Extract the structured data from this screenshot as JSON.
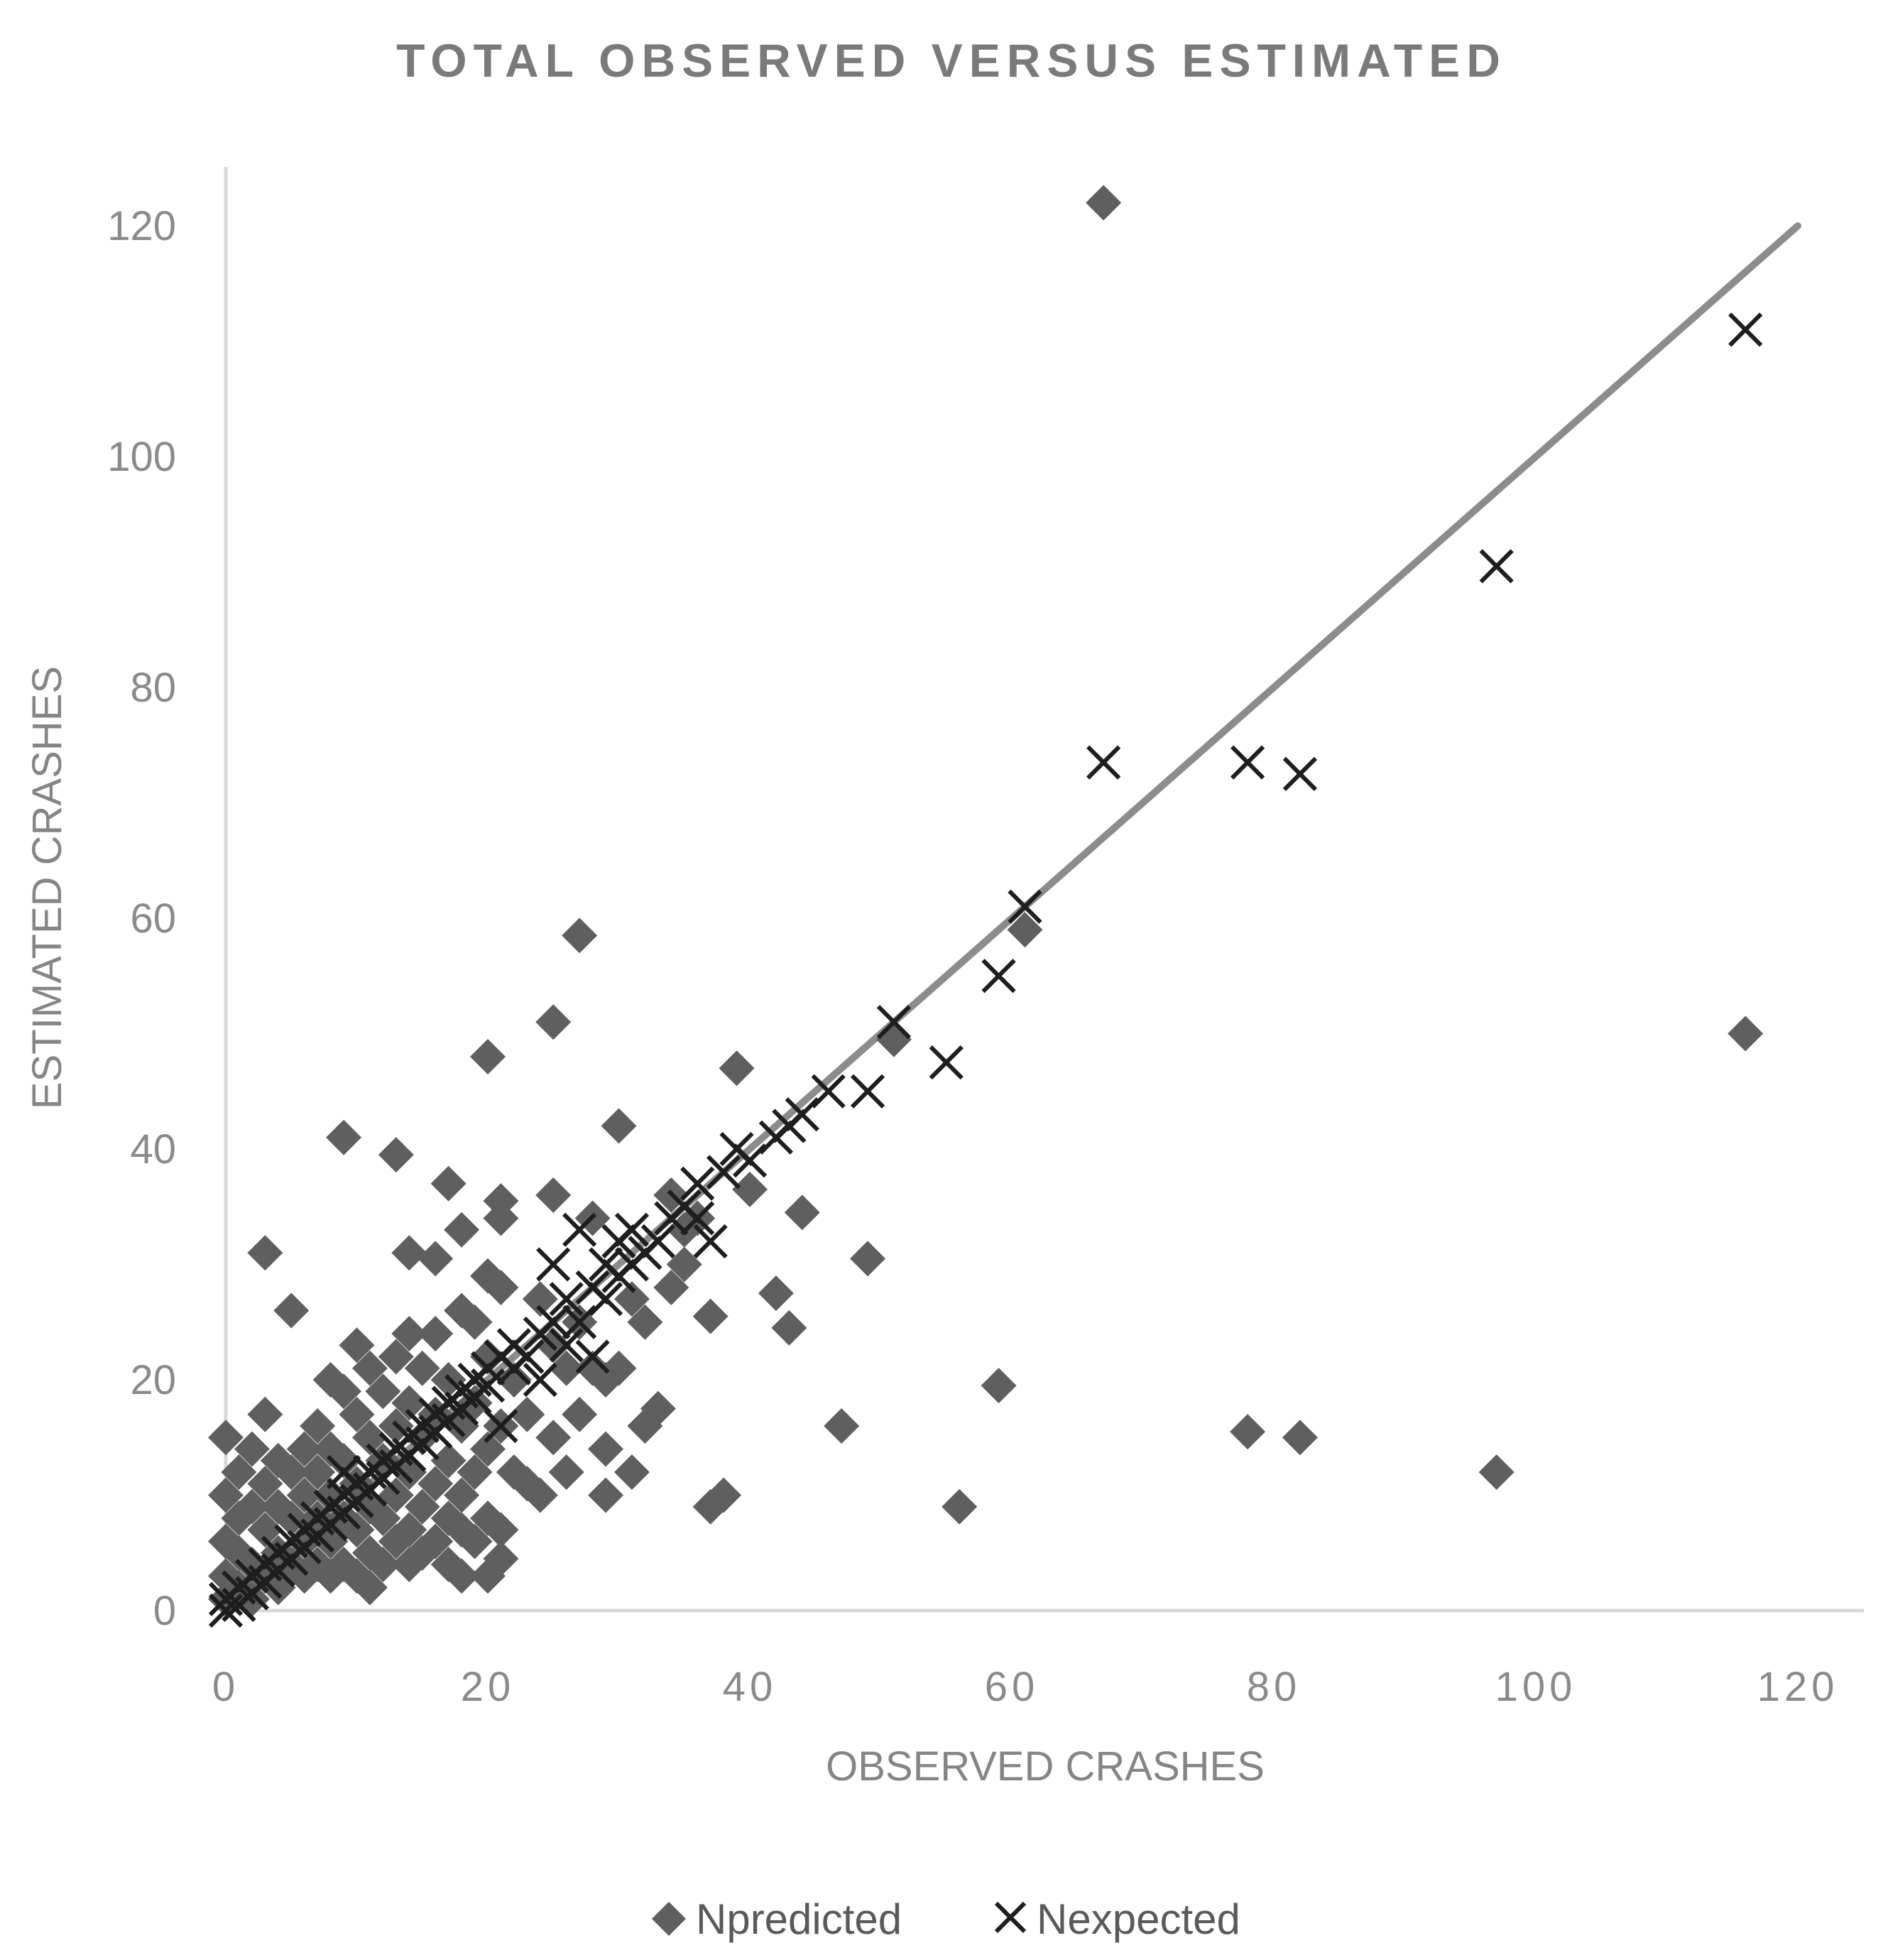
{
  "chart_data": {
    "type": "scatter",
    "title": "TOTAL OBSERVED VERSUS ESTIMATED",
    "xlabel": "OBSERVED CRASHES",
    "ylabel": "ESTIMATED CRASHES",
    "xlim": [
      0,
      120
    ],
    "ylim": [
      0,
      120
    ],
    "xticks": [
      "0",
      "20",
      "40",
      "60",
      "80",
      "100",
      "120"
    ],
    "yticks": [
      "0",
      "20",
      "40",
      "60",
      "80",
      "100",
      "120"
    ],
    "grid": false,
    "legend_position": "bottom",
    "reference_line": {
      "x": [
        0,
        120
      ],
      "y": [
        0,
        120
      ],
      "color": "#8c8c8c"
    },
    "series": [
      {
        "name": "Npredicted",
        "marker": "diamond",
        "color": "#5f5f5f",
        "points": [
          [
            0,
            15
          ],
          [
            0,
            10
          ],
          [
            0,
            6
          ],
          [
            0,
            3
          ],
          [
            0,
            1
          ],
          [
            1,
            12
          ],
          [
            1,
            8
          ],
          [
            1,
            5
          ],
          [
            1,
            2
          ],
          [
            2,
            14
          ],
          [
            2,
            9
          ],
          [
            2,
            4
          ],
          [
            2,
            1
          ],
          [
            3,
            31
          ],
          [
            3,
            17
          ],
          [
            3,
            11
          ],
          [
            3,
            7
          ],
          [
            3,
            3
          ],
          [
            4,
            13
          ],
          [
            4,
            9
          ],
          [
            4,
            5
          ],
          [
            4,
            2
          ],
          [
            5,
            26
          ],
          [
            5,
            12
          ],
          [
            5,
            8
          ],
          [
            5,
            4
          ],
          [
            6,
            14
          ],
          [
            6,
            10
          ],
          [
            6,
            6
          ],
          [
            6,
            3
          ],
          [
            7,
            16
          ],
          [
            7,
            12
          ],
          [
            7,
            8
          ],
          [
            7,
            4
          ],
          [
            8,
            20
          ],
          [
            8,
            14
          ],
          [
            8,
            10
          ],
          [
            8,
            6
          ],
          [
            8,
            3
          ],
          [
            9,
            41
          ],
          [
            9,
            19
          ],
          [
            9,
            13
          ],
          [
            9,
            8
          ],
          [
            9,
            4
          ],
          [
            10,
            23
          ],
          [
            10,
            17
          ],
          [
            10,
            11
          ],
          [
            10,
            7
          ],
          [
            10,
            3
          ],
          [
            11,
            21
          ],
          [
            11,
            15
          ],
          [
            11,
            9
          ],
          [
            11,
            5
          ],
          [
            11,
            2
          ],
          [
            12,
            19
          ],
          [
            12,
            13
          ],
          [
            12,
            8
          ],
          [
            12,
            4
          ],
          [
            13,
            39.5
          ],
          [
            13,
            22
          ],
          [
            13,
            16
          ],
          [
            13,
            10
          ],
          [
            13,
            6
          ],
          [
            14,
            31
          ],
          [
            14,
            24
          ],
          [
            14,
            18
          ],
          [
            14,
            12
          ],
          [
            14,
            7
          ],
          [
            14,
            4
          ],
          [
            15,
            21
          ],
          [
            15,
            15
          ],
          [
            15,
            9
          ],
          [
            15,
            5
          ],
          [
            16,
            30.5
          ],
          [
            16,
            24
          ],
          [
            16,
            17
          ],
          [
            16,
            11
          ],
          [
            16,
            6
          ],
          [
            17,
            37
          ],
          [
            17,
            20
          ],
          [
            17,
            13
          ],
          [
            17,
            8
          ],
          [
            17,
            4
          ],
          [
            18,
            33
          ],
          [
            18,
            26
          ],
          [
            18,
            16
          ],
          [
            18,
            10
          ],
          [
            18,
            7
          ],
          [
            18,
            3
          ],
          [
            19,
            25
          ],
          [
            19,
            18
          ],
          [
            19,
            12
          ],
          [
            19,
            6
          ],
          [
            20,
            48
          ],
          [
            20,
            29
          ],
          [
            20,
            22
          ],
          [
            20,
            14
          ],
          [
            20,
            8
          ],
          [
            20,
            3
          ],
          [
            21,
            35.5
          ],
          [
            21,
            34
          ],
          [
            21,
            28
          ],
          [
            21,
            16
          ],
          [
            21,
            7
          ],
          [
            21,
            4.5
          ],
          [
            22,
            20
          ],
          [
            22,
            12
          ],
          [
            23,
            17
          ],
          [
            23,
            11
          ],
          [
            24,
            27
          ],
          [
            24,
            10
          ],
          [
            25,
            51
          ],
          [
            25,
            36
          ],
          [
            25,
            23
          ],
          [
            25,
            15
          ],
          [
            26,
            21
          ],
          [
            26,
            12
          ],
          [
            27,
            58.5
          ],
          [
            27,
            25
          ],
          [
            27,
            17
          ],
          [
            28,
            34
          ],
          [
            28,
            21
          ],
          [
            29,
            20
          ],
          [
            29,
            14
          ],
          [
            29,
            10
          ],
          [
            30,
            42
          ],
          [
            30,
            21
          ],
          [
            31,
            27
          ],
          [
            31,
            12
          ],
          [
            32,
            25
          ],
          [
            32,
            16
          ],
          [
            33,
            17.5
          ],
          [
            34,
            36
          ],
          [
            34,
            28
          ],
          [
            35,
            33
          ],
          [
            35,
            30
          ],
          [
            36,
            34
          ],
          [
            37,
            25.5
          ],
          [
            37,
            9
          ],
          [
            38,
            10
          ],
          [
            39,
            47
          ],
          [
            40,
            36.5
          ],
          [
            42,
            27.5
          ],
          [
            43,
            24.5
          ],
          [
            44,
            34.5
          ],
          [
            47,
            16
          ],
          [
            49,
            30.5
          ],
          [
            51,
            49.5
          ],
          [
            56,
            9
          ],
          [
            59,
            19.5
          ],
          [
            61,
            59
          ],
          [
            67,
            122
          ],
          [
            78,
            15.5
          ],
          [
            82,
            15
          ],
          [
            97,
            12
          ],
          [
            116,
            50
          ]
        ]
      },
      {
        "name": "Nexpected",
        "marker": "x",
        "color": "#1e1e1e",
        "points": [
          [
            0,
            0
          ],
          [
            0,
            1
          ],
          [
            1,
            0.5
          ],
          [
            1,
            2
          ],
          [
            2,
            1.5
          ],
          [
            2,
            3
          ],
          [
            3,
            2.5
          ],
          [
            3,
            4
          ],
          [
            4,
            3.5
          ],
          [
            4,
            5
          ],
          [
            5,
            4.5
          ],
          [
            5,
            6
          ],
          [
            6,
            5.5
          ],
          [
            6,
            7
          ],
          [
            7,
            6.5
          ],
          [
            7,
            8
          ],
          [
            8,
            7.5
          ],
          [
            8,
            9
          ],
          [
            9,
            8.5
          ],
          [
            9,
            10
          ],
          [
            9,
            12
          ],
          [
            10,
            9.5
          ],
          [
            10,
            11
          ],
          [
            11,
            10.5
          ],
          [
            11,
            12
          ],
          [
            12,
            11.5
          ],
          [
            12,
            13
          ],
          [
            13,
            12.5
          ],
          [
            13,
            14
          ],
          [
            14,
            13.5
          ],
          [
            14,
            15
          ],
          [
            15,
            14.5
          ],
          [
            15,
            16
          ],
          [
            16,
            15.5
          ],
          [
            16,
            17
          ],
          [
            17,
            16.5
          ],
          [
            17,
            18
          ],
          [
            18,
            17.5
          ],
          [
            18,
            19
          ],
          [
            19,
            18.5
          ],
          [
            19,
            20
          ],
          [
            20,
            19.5
          ],
          [
            20,
            21
          ],
          [
            21,
            16
          ],
          [
            21,
            22
          ],
          [
            22,
            21
          ],
          [
            22,
            23
          ],
          [
            23,
            22
          ],
          [
            24,
            20
          ],
          [
            24,
            24
          ],
          [
            25,
            25
          ],
          [
            25,
            30
          ],
          [
            26,
            23
          ],
          [
            26,
            27
          ],
          [
            27,
            25
          ],
          [
            27,
            33
          ],
          [
            28,
            28
          ],
          [
            28,
            22
          ],
          [
            29,
            27
          ],
          [
            29,
            30
          ],
          [
            30,
            29
          ],
          [
            30,
            32
          ],
          [
            31,
            30
          ],
          [
            31,
            33
          ],
          [
            32,
            31
          ],
          [
            33,
            32
          ],
          [
            34,
            34
          ],
          [
            35,
            35
          ],
          [
            36,
            34
          ],
          [
            36,
            37
          ],
          [
            37,
            32
          ],
          [
            38,
            38
          ],
          [
            39,
            40
          ],
          [
            40,
            39
          ],
          [
            42,
            41
          ],
          [
            43,
            42
          ],
          [
            44,
            43
          ],
          [
            46,
            45
          ],
          [
            49,
            45
          ],
          [
            51,
            51
          ],
          [
            55,
            47.5
          ],
          [
            59,
            55
          ],
          [
            61,
            61
          ],
          [
            67,
            73.5
          ],
          [
            78,
            73.5
          ],
          [
            82,
            72.5
          ],
          [
            97,
            90.5
          ],
          [
            116,
            111
          ]
        ]
      }
    ]
  }
}
